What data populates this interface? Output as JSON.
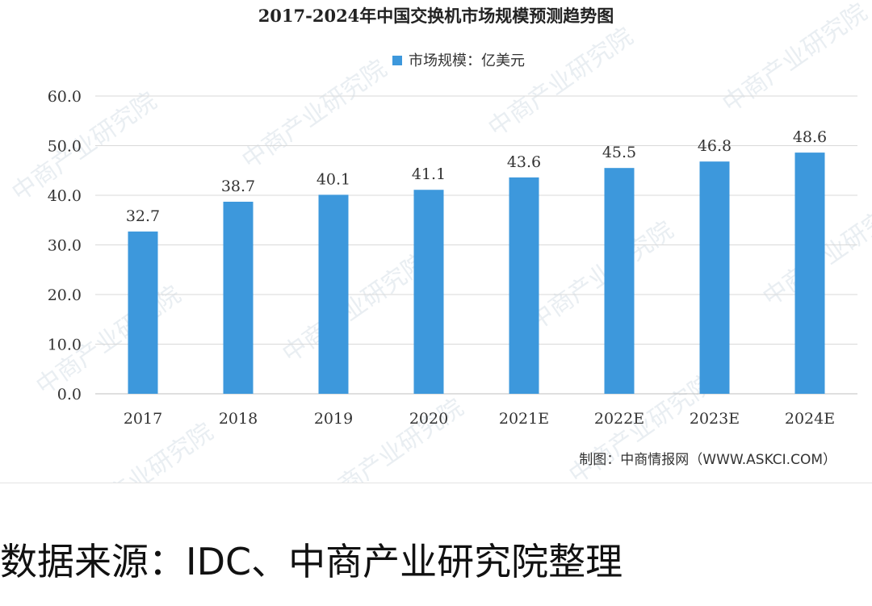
{
  "chart_data": {
    "type": "bar",
    "title": "2017-2024年中国交换机市场规模预测趋势图",
    "series": [
      {
        "name": "市场规模：亿美元",
        "values": [
          32.7,
          38.7,
          40.1,
          41.1,
          43.6,
          45.5,
          46.8,
          48.6
        ],
        "value_labels": [
          "32.7",
          "38.7",
          "40.1",
          "41.1",
          "43.6",
          "45.5",
          "46.8",
          "48.6"
        ]
      }
    ],
    "categories": [
      "2017",
      "2018",
      "2019",
      "2020",
      "2021E",
      "2022E",
      "2023E",
      "2024E"
    ],
    "ylim": [
      0,
      60
    ],
    "yticks": [
      "0.0",
      "10.0",
      "20.0",
      "30.0",
      "40.0",
      "50.0",
      "60.0"
    ],
    "xlabel": "",
    "ylabel": "",
    "grid": true,
    "legend": "top-center",
    "colors": {
      "bar": "#3d98dc",
      "grid": "#d9d9d9",
      "text": "#333333"
    },
    "watermark": "中商产业研究院",
    "credit": "制图：中商情报网（WWW.ASKCI.COM）"
  },
  "footer": {
    "source": "数据来源：IDC、中商产业研究院整理"
  }
}
